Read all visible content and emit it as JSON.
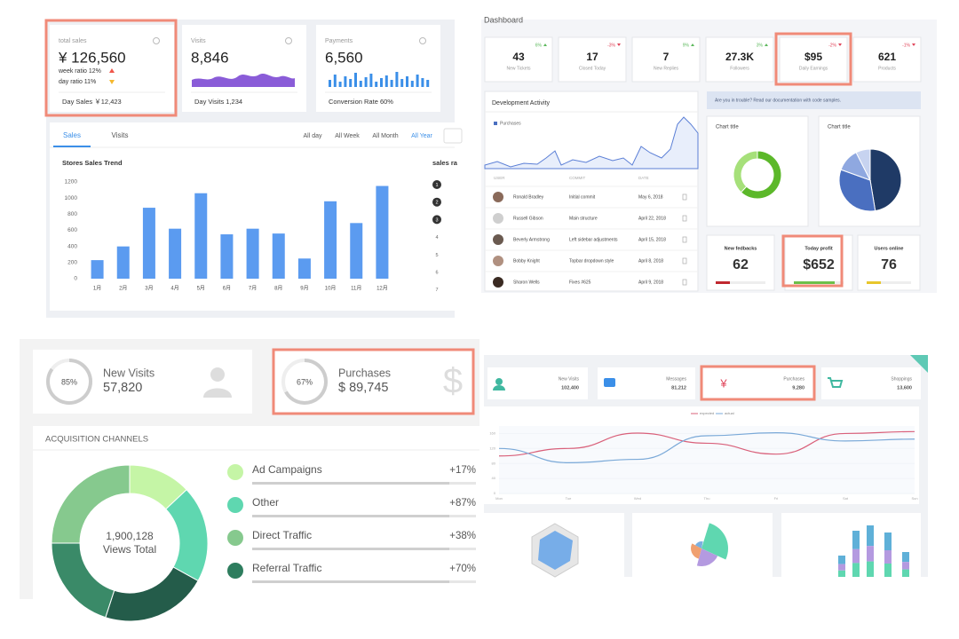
{
  "panel_sales": {
    "cards": [
      {
        "label": "total sales",
        "value": "¥ 126,560",
        "lines": [
          "week ratio  12%",
          "day ratio  11%"
        ],
        "footer": "Day Sales  ￥12,423"
      },
      {
        "label": "Visits",
        "value": "8,846",
        "footer": "Day Visits  1,234"
      },
      {
        "label": "Payments",
        "value": "6,560",
        "footer": "Conversion Rate  60%"
      }
    ],
    "tabs": [
      "Sales",
      "Visits"
    ],
    "ranges": [
      "All day",
      "All Week",
      "All Month",
      "All Year"
    ],
    "chart": {
      "type": "bar",
      "title": "Stores Sales Trend",
      "categories": [
        "1月",
        "2月",
        "3月",
        "4月",
        "5月",
        "6月",
        "7月",
        "8月",
        "9月",
        "10月",
        "11月",
        "12月"
      ],
      "values": [
        230,
        400,
        880,
        620,
        1060,
        550,
        620,
        560,
        250,
        960,
        690,
        1150
      ],
      "ylim": [
        0,
        1200
      ],
      "yticks": [
        0,
        200,
        400,
        600,
        800,
        1000,
        1200
      ],
      "color": "#5b9bf0"
    },
    "side_title": "sales ra",
    "ranks": [
      1,
      2,
      3,
      4,
      5,
      6,
      7
    ]
  },
  "panel_dashboard": {
    "title": "Dashboard",
    "stats": [
      {
        "change": "6%",
        "value": "43",
        "label": "New Tickets"
      },
      {
        "change": "-3%",
        "value": "17",
        "label": "Closed Today"
      },
      {
        "change": "9%",
        "value": "7",
        "label": "New Replies"
      },
      {
        "change": "3%",
        "value": "27.3K",
        "label": "Followers"
      },
      {
        "change": "-2%",
        "value": "$95",
        "label": "Daily Earnings"
      },
      {
        "change": "-1%",
        "value": "621",
        "label": "Products"
      }
    ],
    "activity": {
      "title": "Development Activity",
      "legend": "Purchases",
      "columns": [
        "USER",
        "COMMIT",
        "DATE"
      ],
      "rows": [
        [
          "Ronald Bradley",
          "Initial commit",
          "May 6, 2018"
        ],
        [
          "Russell Gibson",
          "Main structure",
          "April 22, 2018"
        ],
        [
          "Beverly Armstrong",
          "Left sidebar adjustments",
          "April 15, 2018"
        ],
        [
          "Bobby Knight",
          "Topbar dropdown style",
          "April 8, 2018"
        ],
        [
          "Sharon Wells",
          "Fixes #625",
          "April 9, 2018"
        ]
      ]
    },
    "alert": "Are you in trouble? Read our documentation with code samples.",
    "charts": [
      {
        "type": "donut",
        "title": "Chart title",
        "values": [
          62,
          38
        ],
        "colors": [
          "#5cb82a",
          "#a6e07a"
        ]
      },
      {
        "type": "pie",
        "title": "Chart title",
        "values": [
          47.4,
          33.1,
          12,
          7.5
        ],
        "colors": [
          "#1f3a66",
          "#4a6fc0",
          "#8fa8e0",
          "#c7d3f0"
        ]
      }
    ],
    "kpis": [
      {
        "label": "New fedbacks",
        "value": "62",
        "color": "#c0282f"
      },
      {
        "label": "Today profit",
        "value": "$652",
        "color": "#6cc04a"
      },
      {
        "label": "Users online",
        "value": "76",
        "color": "#e8c62c"
      }
    ]
  },
  "panel_acquisition": {
    "gauges": [
      {
        "value": 85,
        "value_label": "85%",
        "label": "New Visits",
        "amount": "57,820"
      },
      {
        "value": 67,
        "value_label": "67%",
        "label": "Purchases",
        "amount": "$ 89,745",
        "icon": "$"
      }
    ],
    "title": "ACQUISITION CHANNELS",
    "total": "1,900,128",
    "total_label": "Views Total",
    "channels": [
      {
        "name": "Ad Campaigns",
        "change": "+17%",
        "color": "#c5f5a6"
      },
      {
        "name": "Other",
        "change": "+87%",
        "color": "#5fd7b0"
      },
      {
        "name": "Direct Traffic",
        "change": "+38%",
        "color": "#86c98e"
      },
      {
        "name": "Referral Traffic",
        "change": "+70%",
        "color": "#2e7d5e"
      }
    ],
    "donut": {
      "type": "donut",
      "values": [
        13,
        20,
        22,
        20,
        25
      ],
      "colors": [
        "#c5f5a6",
        "#5fd7b0",
        "#245c4a",
        "#3a8a68",
        "#86c98e"
      ]
    }
  },
  "panel_trends": {
    "stats": [
      {
        "label": "New Visits",
        "value": "102,400"
      },
      {
        "label": "Messages",
        "value": "81,212"
      },
      {
        "label": "Purchases",
        "value": "9,280",
        "icon": "¥"
      },
      {
        "label": "Shoppings",
        "value": "13,600"
      }
    ],
    "chart": {
      "type": "line",
      "categories": [
        "Mon",
        "Tue",
        "Wed",
        "Thu",
        "Fri",
        "Sat",
        "Sun"
      ],
      "series": [
        {
          "name": "expected",
          "color": "#d9607a",
          "values": [
            100,
            120,
            161,
            134,
            105,
            160,
            165
          ]
        },
        {
          "name": "actual",
          "color": "#7aa9d8",
          "values": [
            120,
            82,
            91,
            154,
            162,
            140,
            145
          ]
        }
      ],
      "ylim": [
        0,
        180
      ],
      "yticks": [
        0,
        40,
        80,
        120,
        160
      ],
      "grid": true
    }
  }
}
